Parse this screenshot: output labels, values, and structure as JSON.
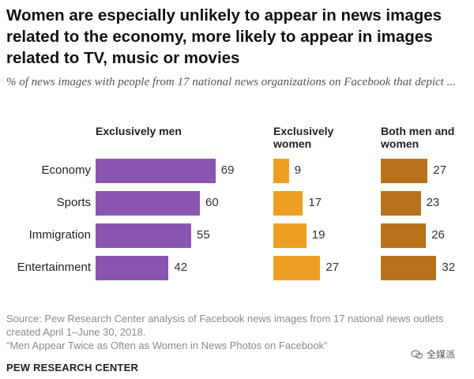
{
  "chart_data": {
    "type": "bar",
    "title": "Women are especially unlikely to appear in news images related to the economy, more likely to appear in images related to TV, music or movies",
    "subtitle": "% of news images with people from 17 national news organizations on Facebook that depict ...",
    "categories": [
      "Economy",
      "Sports",
      "Immigration",
      "Entertainment"
    ],
    "series": [
      {
        "name": "Exclusively men",
        "values": [
          69,
          60,
          55,
          42
        ],
        "color": "#8a55b0"
      },
      {
        "name": "Exclusively women",
        "values": [
          9,
          17,
          19,
          27
        ],
        "color": "#ee9f23"
      },
      {
        "name": "Both men and women",
        "values": [
          27,
          23,
          26,
          32
        ],
        "color": "#b8721c"
      }
    ],
    "xlim": [
      0,
      100
    ],
    "grid": false,
    "legend": "column headers"
  },
  "headers": {
    "men": "Exclusively men",
    "women": "Exclusively women",
    "both": "Both men and women"
  },
  "source": {
    "line1": "Source: Pew Research Center analysis of Facebook news images from 17 national news outlets created April 1–June 30, 2018.",
    "line2": "“Men Appear Twice as Often as Women in News Photos on Facebook”"
  },
  "org": "PEW RESEARCH CENTER",
  "watermark": "全媒派"
}
